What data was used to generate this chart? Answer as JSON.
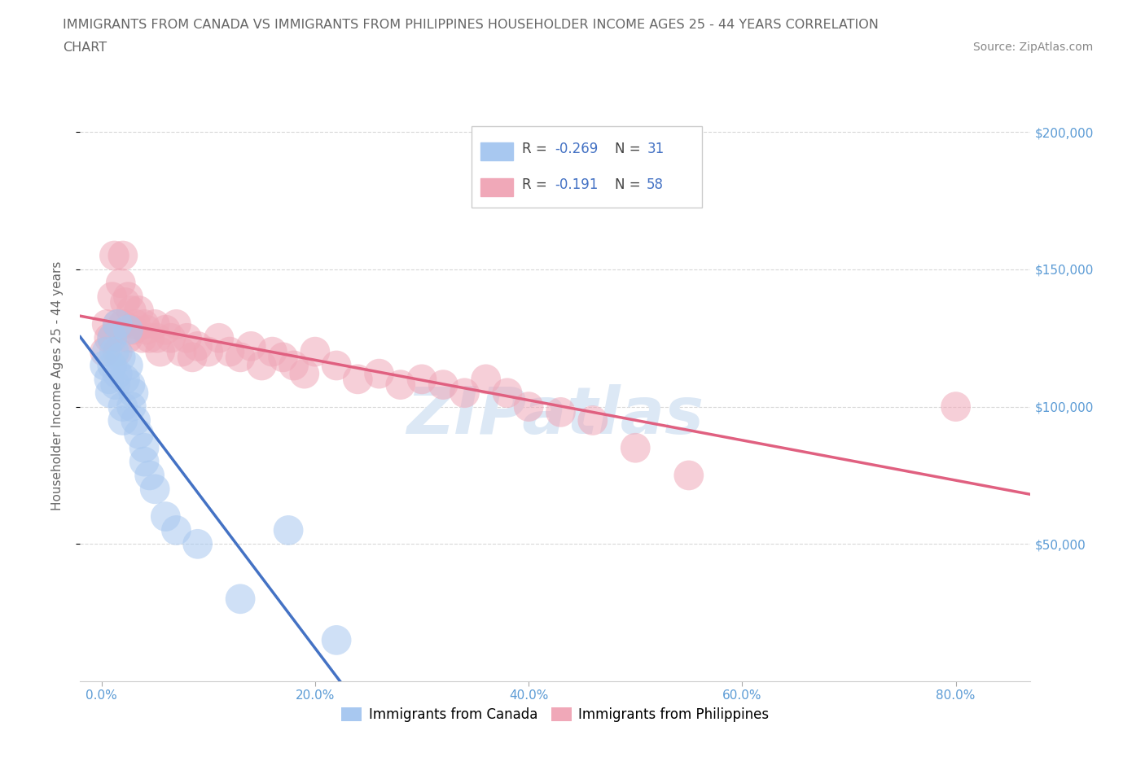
{
  "title_line1": "IMMIGRANTS FROM CANADA VS IMMIGRANTS FROM PHILIPPINES HOUSEHOLDER INCOME AGES 25 - 44 YEARS CORRELATION",
  "title_line2": "CHART",
  "source_text": "Source: ZipAtlas.com",
  "ylabel": "Householder Income Ages 25 - 44 years",
  "xlabel_ticks": [
    "0.0%",
    "20.0%",
    "40.0%",
    "60.0%",
    "80.0%"
  ],
  "xlabel_tick_vals": [
    0.0,
    0.2,
    0.4,
    0.6,
    0.8
  ],
  "ylabel_ticks": [
    "$200,000",
    "$150,000",
    "$100,000",
    "$50,000"
  ],
  "ylabel_tick_vals": [
    200000,
    150000,
    100000,
    50000
  ],
  "xlim": [
    -0.02,
    0.87
  ],
  "ylim": [
    0,
    215000
  ],
  "canada_color": "#a8c8f0",
  "philippines_color": "#f0a8b8",
  "canada_line_color": "#4472c4",
  "philippines_line_color": "#e06080",
  "dashed_line_color": "#c0c8d8",
  "watermark_color": "#dce8f5",
  "grid_color": "#d8d8d8",
  "background_color": "#ffffff",
  "title_color": "#666666",
  "source_color": "#888888",
  "tick_color": "#5b9bd5",
  "canada_x": [
    0.003,
    0.005,
    0.007,
    0.008,
    0.01,
    0.01,
    0.012,
    0.013,
    0.015,
    0.015,
    0.018,
    0.02,
    0.02,
    0.022,
    0.025,
    0.025,
    0.027,
    0.028,
    0.03,
    0.032,
    0.035,
    0.04,
    0.04,
    0.045,
    0.05,
    0.06,
    0.07,
    0.09,
    0.13,
    0.175,
    0.22
  ],
  "canada_y": [
    115000,
    120000,
    110000,
    105000,
    125000,
    115000,
    120000,
    108000,
    130000,
    112000,
    118000,
    100000,
    95000,
    110000,
    128000,
    115000,
    108000,
    100000,
    105000,
    95000,
    90000,
    85000,
    80000,
    75000,
    70000,
    60000,
    55000,
    50000,
    30000,
    55000,
    15000
  ],
  "philippines_x": [
    0.003,
    0.005,
    0.007,
    0.01,
    0.01,
    0.012,
    0.015,
    0.015,
    0.018,
    0.02,
    0.02,
    0.022,
    0.025,
    0.025,
    0.028,
    0.03,
    0.032,
    0.035,
    0.038,
    0.04,
    0.042,
    0.045,
    0.05,
    0.052,
    0.055,
    0.06,
    0.065,
    0.07,
    0.075,
    0.08,
    0.085,
    0.09,
    0.1,
    0.11,
    0.12,
    0.13,
    0.14,
    0.15,
    0.16,
    0.17,
    0.18,
    0.19,
    0.2,
    0.22,
    0.24,
    0.26,
    0.28,
    0.3,
    0.32,
    0.34,
    0.36,
    0.38,
    0.4,
    0.43,
    0.46,
    0.5,
    0.55,
    0.8
  ],
  "philippines_y": [
    120000,
    130000,
    125000,
    140000,
    125000,
    155000,
    130000,
    120000,
    145000,
    155000,
    130000,
    138000,
    140000,
    125000,
    135000,
    128000,
    130000,
    135000,
    125000,
    130000,
    128000,
    125000,
    130000,
    125000,
    120000,
    128000,
    125000,
    130000,
    120000,
    125000,
    118000,
    122000,
    120000,
    125000,
    120000,
    118000,
    122000,
    115000,
    120000,
    118000,
    115000,
    112000,
    120000,
    115000,
    110000,
    112000,
    108000,
    110000,
    108000,
    105000,
    110000,
    105000,
    100000,
    98000,
    95000,
    85000,
    75000,
    100000
  ]
}
